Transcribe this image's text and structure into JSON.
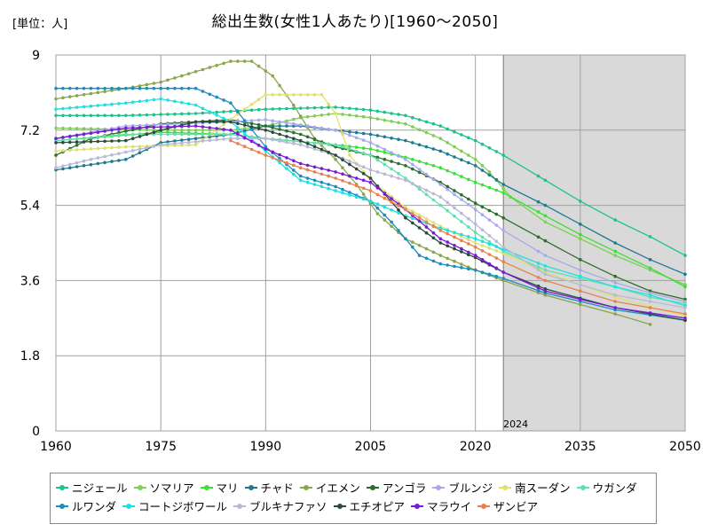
{
  "chart_data": {
    "type": "line",
    "title": "総出生数(女性1人あたり)[1960～2050]",
    "unit_label": "[単位：人]",
    "xlim": [
      1960,
      2050
    ],
    "ylim": [
      0,
      9
    ],
    "x_ticks": [
      "1960",
      "1975",
      "1990",
      "2005",
      "2020",
      "2035",
      "2050"
    ],
    "y_ticks": [
      "0",
      "1.8",
      "3.6",
      "5.4",
      "7.2",
      "9"
    ],
    "grid": true,
    "forecast_shade": {
      "from": 2024,
      "to": 2050,
      "label": "2024"
    },
    "legend_position": "bottom",
    "series": [
      {
        "name": "ニジェール",
        "color": "#19c48a",
        "points": [
          [
            1960,
            7.55
          ],
          [
            1970,
            7.55
          ],
          [
            1980,
            7.6
          ],
          [
            1990,
            7.7
          ],
          [
            2000,
            7.75
          ],
          [
            2005,
            7.68
          ],
          [
            2010,
            7.55
          ],
          [
            2015,
            7.3
          ],
          [
            2020,
            6.95
          ],
          [
            2024,
            6.6
          ],
          [
            2030,
            6.0
          ],
          [
            2035,
            5.5
          ],
          [
            2040,
            5.05
          ],
          [
            2045,
            4.65
          ],
          [
            2050,
            4.2
          ]
        ]
      },
      {
        "name": "ソマリア",
        "color": "#7fcf55",
        "points": [
          [
            1960,
            7.25
          ],
          [
            1975,
            7.2
          ],
          [
            1985,
            7.2
          ],
          [
            1990,
            7.3
          ],
          [
            1995,
            7.5
          ],
          [
            2000,
            7.6
          ],
          [
            2005,
            7.5
          ],
          [
            2010,
            7.35
          ],
          [
            2015,
            7.0
          ],
          [
            2020,
            6.5
          ],
          [
            2022,
            6.2
          ],
          [
            2025,
            5.6
          ],
          [
            2030,
            5.0
          ],
          [
            2040,
            4.2
          ],
          [
            2050,
            3.5
          ]
        ]
      },
      {
        "name": "マリ",
        "color": "#38e038",
        "points": [
          [
            1960,
            6.95
          ],
          [
            1975,
            7.15
          ],
          [
            1985,
            7.1
          ],
          [
            1990,
            7.0
          ],
          [
            2000,
            6.85
          ],
          [
            2005,
            6.75
          ],
          [
            2010,
            6.55
          ],
          [
            2015,
            6.3
          ],
          [
            2020,
            5.95
          ],
          [
            2024,
            5.7
          ],
          [
            2030,
            5.15
          ],
          [
            2035,
            4.7
          ],
          [
            2040,
            4.3
          ],
          [
            2045,
            3.9
          ],
          [
            2050,
            3.45
          ]
        ]
      },
      {
        "name": "チャド",
        "color": "#1d7a8f",
        "points": [
          [
            1960,
            6.25
          ],
          [
            1970,
            6.5
          ],
          [
            1975,
            6.9
          ],
          [
            1985,
            7.1
          ],
          [
            1990,
            7.3
          ],
          [
            1995,
            7.3
          ],
          [
            2000,
            7.2
          ],
          [
            2005,
            7.1
          ],
          [
            2010,
            6.95
          ],
          [
            2015,
            6.7
          ],
          [
            2020,
            6.35
          ],
          [
            2024,
            5.9
          ],
          [
            2030,
            5.4
          ],
          [
            2035,
            4.95
          ],
          [
            2040,
            4.5
          ],
          [
            2045,
            4.1
          ],
          [
            2050,
            3.75
          ]
        ]
      },
      {
        "name": "イエメン",
        "color": "#8aa64a",
        "points": [
          [
            1960,
            7.95
          ],
          [
            1970,
            8.2
          ],
          [
            1975,
            8.35
          ],
          [
            1980,
            8.6
          ],
          [
            1985,
            8.85
          ],
          [
            1988,
            8.85
          ],
          [
            1991,
            8.5
          ],
          [
            1994,
            7.8
          ],
          [
            1997,
            7.0
          ],
          [
            2000,
            6.5
          ],
          [
            2003,
            5.9
          ],
          [
            2006,
            5.2
          ],
          [
            2010,
            4.6
          ],
          [
            2015,
            4.2
          ],
          [
            2020,
            3.85
          ],
          [
            2024,
            3.6
          ],
          [
            2030,
            3.25
          ],
          [
            2040,
            2.8
          ],
          [
            2045,
            2.55
          ]
        ]
      },
      {
        "name": "アンゴラ",
        "color": "#2c6e2c",
        "points": [
          [
            1960,
            6.6
          ],
          [
            1965,
            7.0
          ],
          [
            1975,
            7.35
          ],
          [
            1985,
            7.45
          ],
          [
            1990,
            7.3
          ],
          [
            1995,
            7.1
          ],
          [
            2000,
            6.8
          ],
          [
            2005,
            6.6
          ],
          [
            2010,
            6.35
          ],
          [
            2015,
            5.95
          ],
          [
            2020,
            5.45
          ],
          [
            2024,
            5.1
          ],
          [
            2030,
            4.55
          ],
          [
            2035,
            4.1
          ],
          [
            2040,
            3.7
          ],
          [
            2045,
            3.35
          ],
          [
            2050,
            3.15
          ]
        ]
      },
      {
        "name": "ブルンジ",
        "color": "#a8a8f0",
        "points": [
          [
            1960,
            7.0
          ],
          [
            1970,
            7.3
          ],
          [
            1985,
            7.4
          ],
          [
            1990,
            7.45
          ],
          [
            2000,
            7.2
          ],
          [
            2005,
            6.9
          ],
          [
            2010,
            6.5
          ],
          [
            2015,
            5.9
          ],
          [
            2020,
            5.3
          ],
          [
            2024,
            4.8
          ],
          [
            2030,
            4.2
          ],
          [
            2035,
            3.85
          ],
          [
            2040,
            3.55
          ],
          [
            2045,
            3.3
          ],
          [
            2050,
            3.1
          ]
        ]
      },
      {
        "name": "南スーダン",
        "color": "#e0e070",
        "points": [
          [
            1960,
            6.7
          ],
          [
            1970,
            6.8
          ],
          [
            1980,
            6.85
          ],
          [
            1987,
            7.7
          ],
          [
            1990,
            8.05
          ],
          [
            1998,
            8.05
          ],
          [
            2000,
            7.6
          ],
          [
            2002,
            6.6
          ],
          [
            2005,
            6.0
          ],
          [
            2010,
            5.35
          ],
          [
            2015,
            4.9
          ],
          [
            2020,
            4.5
          ],
          [
            2024,
            4.25
          ],
          [
            2030,
            3.8
          ],
          [
            2040,
            3.2
          ],
          [
            2050,
            2.75
          ]
        ]
      },
      {
        "name": "ウガンダ",
        "color": "#60e0b0",
        "points": [
          [
            1960,
            6.95
          ],
          [
            1970,
            7.1
          ],
          [
            1978,
            7.1
          ],
          [
            1985,
            7.1
          ],
          [
            1990,
            7.0
          ],
          [
            2000,
            6.85
          ],
          [
            2005,
            6.6
          ],
          [
            2010,
            6.05
          ],
          [
            2015,
            5.4
          ],
          [
            2020,
            4.75
          ],
          [
            2024,
            4.3
          ],
          [
            2030,
            3.85
          ],
          [
            2040,
            3.45
          ],
          [
            2045,
            3.2
          ],
          [
            2050,
            3.05
          ]
        ]
      },
      {
        "name": "ルワンダ",
        "color": "#1a8cc0",
        "points": [
          [
            1960,
            8.2
          ],
          [
            1970,
            8.2
          ],
          [
            1980,
            8.2
          ],
          [
            1985,
            7.85
          ],
          [
            1990,
            6.8
          ],
          [
            1995,
            6.1
          ],
          [
            2000,
            5.85
          ],
          [
            2005,
            5.5
          ],
          [
            2008,
            5.0
          ],
          [
            2012,
            4.2
          ],
          [
            2015,
            4.0
          ],
          [
            2020,
            3.85
          ],
          [
            2024,
            3.65
          ],
          [
            2030,
            3.3
          ],
          [
            2040,
            2.9
          ],
          [
            2050,
            2.65
          ]
        ]
      },
      {
        "name": "コートジボワール",
        "color": "#1ee0e0",
        "points": [
          [
            1960,
            7.7
          ],
          [
            1970,
            7.85
          ],
          [
            1975,
            7.95
          ],
          [
            1980,
            7.8
          ],
          [
            1985,
            7.4
          ],
          [
            1990,
            6.7
          ],
          [
            1995,
            6.0
          ],
          [
            2000,
            5.75
          ],
          [
            2005,
            5.5
          ],
          [
            2010,
            5.15
          ],
          [
            2015,
            4.85
          ],
          [
            2020,
            4.6
          ],
          [
            2024,
            4.35
          ],
          [
            2030,
            3.95
          ],
          [
            2035,
            3.7
          ],
          [
            2040,
            3.45
          ],
          [
            2045,
            3.25
          ],
          [
            2050,
            3.0
          ]
        ]
      },
      {
        "name": "ブルキナファソ",
        "color": "#b8b8d8",
        "points": [
          [
            1960,
            6.3
          ],
          [
            1965,
            6.5
          ],
          [
            1975,
            6.85
          ],
          [
            1985,
            7.0
          ],
          [
            1990,
            7.0
          ],
          [
            1995,
            6.85
          ],
          [
            2000,
            6.6
          ],
          [
            2005,
            6.25
          ],
          [
            2010,
            6.0
          ],
          [
            2015,
            5.6
          ],
          [
            2020,
            4.95
          ],
          [
            2024,
            4.4
          ],
          [
            2030,
            3.75
          ],
          [
            2040,
            3.25
          ],
          [
            2050,
            2.95
          ]
        ]
      },
      {
        "name": "エチオピア",
        "color": "#2c4a3a",
        "points": [
          [
            1960,
            6.9
          ],
          [
            1970,
            6.95
          ],
          [
            1975,
            7.2
          ],
          [
            1980,
            7.4
          ],
          [
            1985,
            7.4
          ],
          [
            1990,
            7.2
          ],
          [
            1995,
            6.95
          ],
          [
            2000,
            6.6
          ],
          [
            2005,
            6.05
          ],
          [
            2010,
            5.1
          ],
          [
            2015,
            4.5
          ],
          [
            2020,
            4.15
          ],
          [
            2024,
            3.8
          ],
          [
            2030,
            3.4
          ],
          [
            2040,
            2.95
          ],
          [
            2050,
            2.65
          ]
        ]
      },
      {
        "name": "マラウイ",
        "color": "#7a1ad8",
        "points": [
          [
            1960,
            7.0
          ],
          [
            1970,
            7.25
          ],
          [
            1980,
            7.3
          ],
          [
            1985,
            7.2
          ],
          [
            1990,
            6.75
          ],
          [
            1995,
            6.4
          ],
          [
            2000,
            6.2
          ],
          [
            2005,
            5.95
          ],
          [
            2010,
            5.3
          ],
          [
            2015,
            4.6
          ],
          [
            2020,
            4.2
          ],
          [
            2024,
            3.8
          ],
          [
            2030,
            3.35
          ],
          [
            2040,
            2.95
          ],
          [
            2050,
            2.7
          ]
        ]
      },
      {
        "name": "ザンビア",
        "color": "#e88050",
        "points": [
          [
            1985,
            6.95
          ],
          [
            1990,
            6.6
          ],
          [
            1995,
            6.3
          ],
          [
            2000,
            6.05
          ],
          [
            2005,
            5.75
          ],
          [
            2010,
            5.3
          ],
          [
            2015,
            4.8
          ],
          [
            2020,
            4.4
          ],
          [
            2024,
            4.05
          ],
          [
            2030,
            3.6
          ],
          [
            2040,
            3.1
          ],
          [
            2050,
            2.8
          ]
        ]
      }
    ]
  }
}
